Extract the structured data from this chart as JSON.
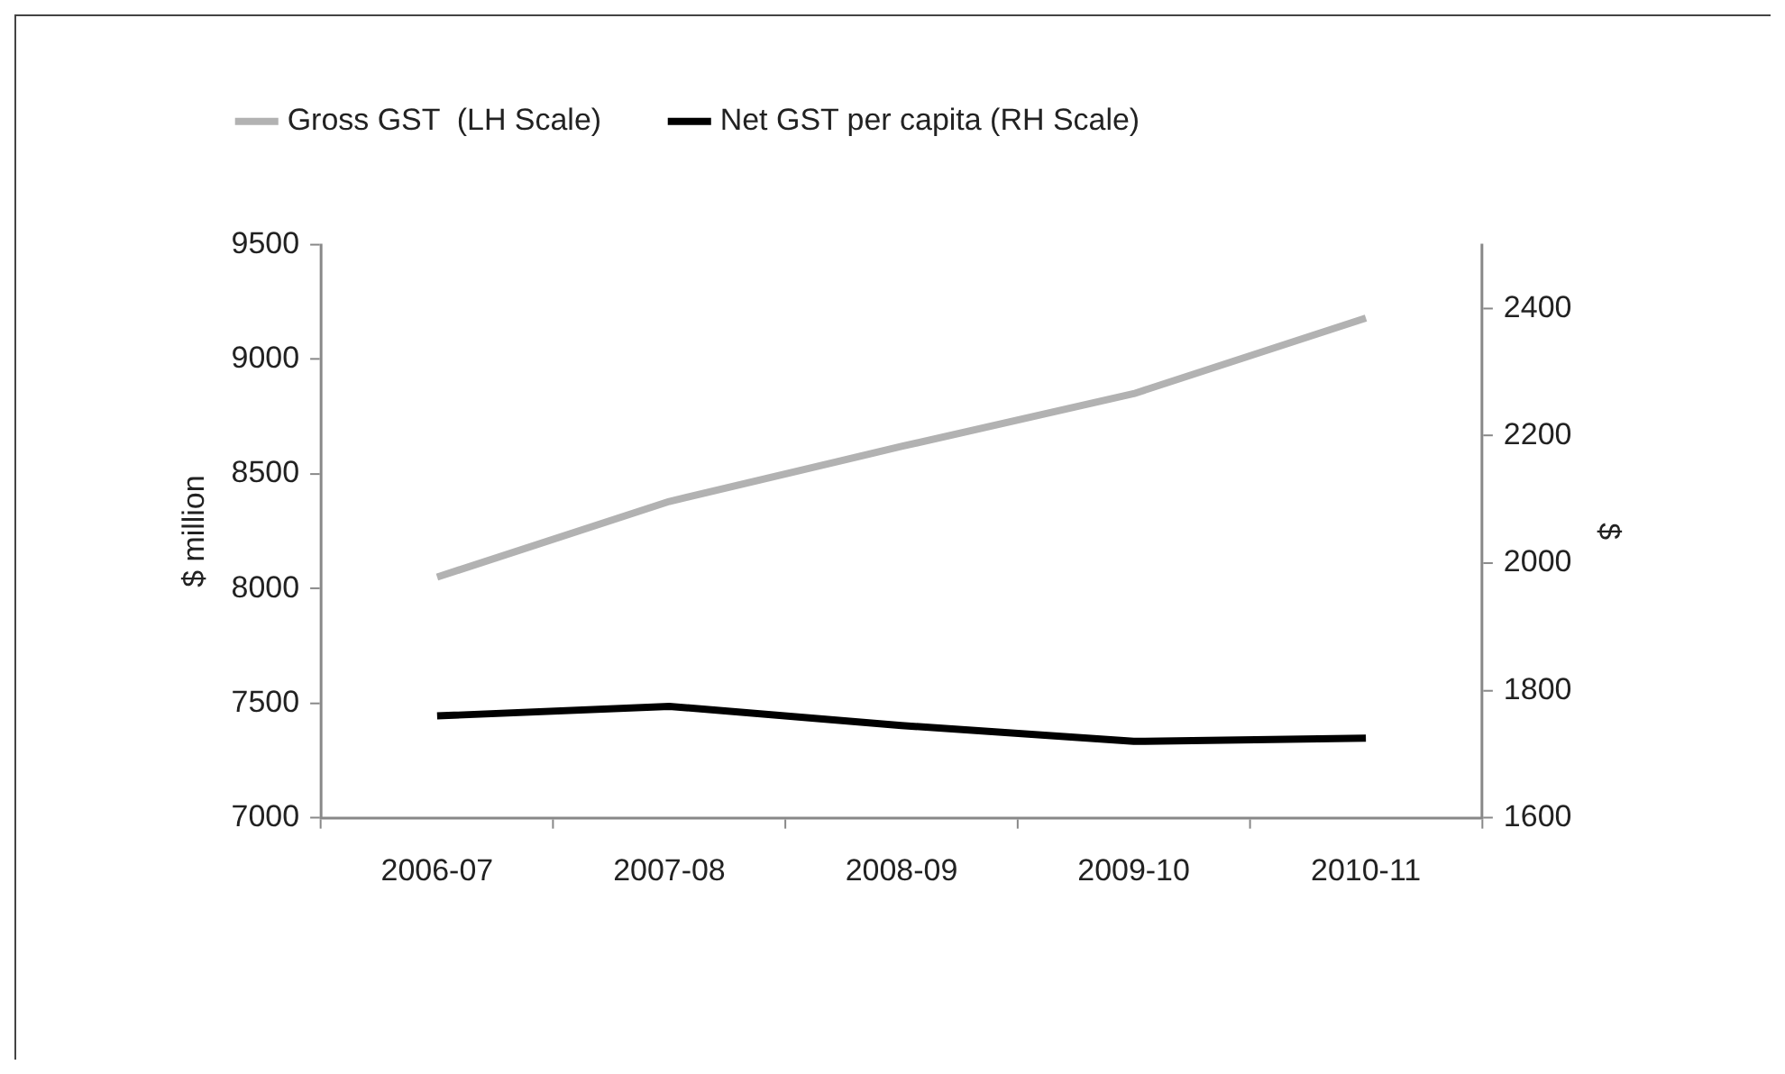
{
  "chart_data": {
    "type": "line",
    "categories": [
      "2006-07",
      "2007-08",
      "2008-09",
      "2009-10",
      "2010-11"
    ],
    "series": [
      {
        "name": "Gross GST  (LH Scale)",
        "color": "#b2b2b2",
        "values": [
          8050,
          8380,
          8620,
          8850,
          9180
        ]
      },
      {
        "name": "Net GST per capita (RH Scale)",
        "color": "#000000",
        "axis": "y2",
        "values": [
          1760,
          1775,
          1745,
          1720,
          1725
        ]
      }
    ],
    "ylabel": "$ million",
    "y2label": "$",
    "ylim": [
      7000,
      9500
    ],
    "yticks": [
      7000,
      7500,
      8000,
      8500,
      9000,
      9500
    ],
    "y2lim": [
      1600,
      2500
    ],
    "y2ticks": [
      1600,
      1800,
      2000,
      2200,
      2400
    ],
    "grid": false,
    "legend": "top left",
    "marker": "none",
    "line_style": "solid"
  }
}
